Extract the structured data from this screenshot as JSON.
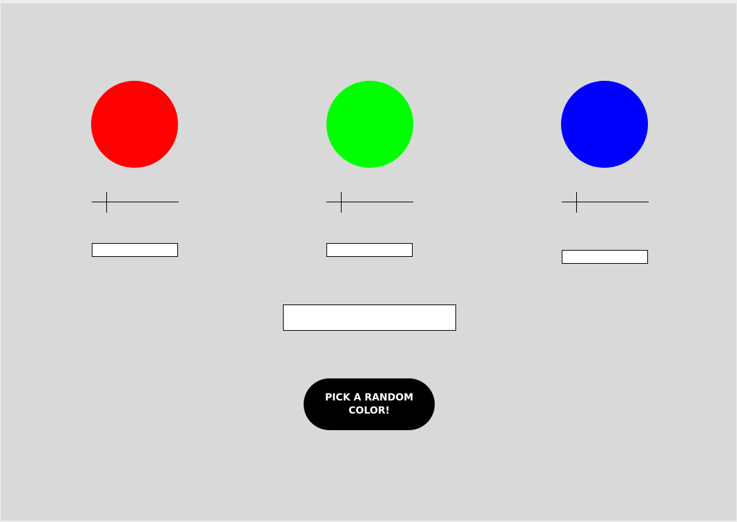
{
  "colors": {
    "red": "#ff0000",
    "green": "#00ff00",
    "blue": "#0000ff",
    "background": "#d9d9d9",
    "button": "#000000",
    "button_text": "#ffffff"
  },
  "channels": [
    {
      "name": "red",
      "slider_value": 0.17
    },
    {
      "name": "green",
      "slider_value": 0.17
    },
    {
      "name": "blue",
      "slider_value": 0.17
    }
  ],
  "button": {
    "label": "PICK A RANDOM COLOR!"
  }
}
